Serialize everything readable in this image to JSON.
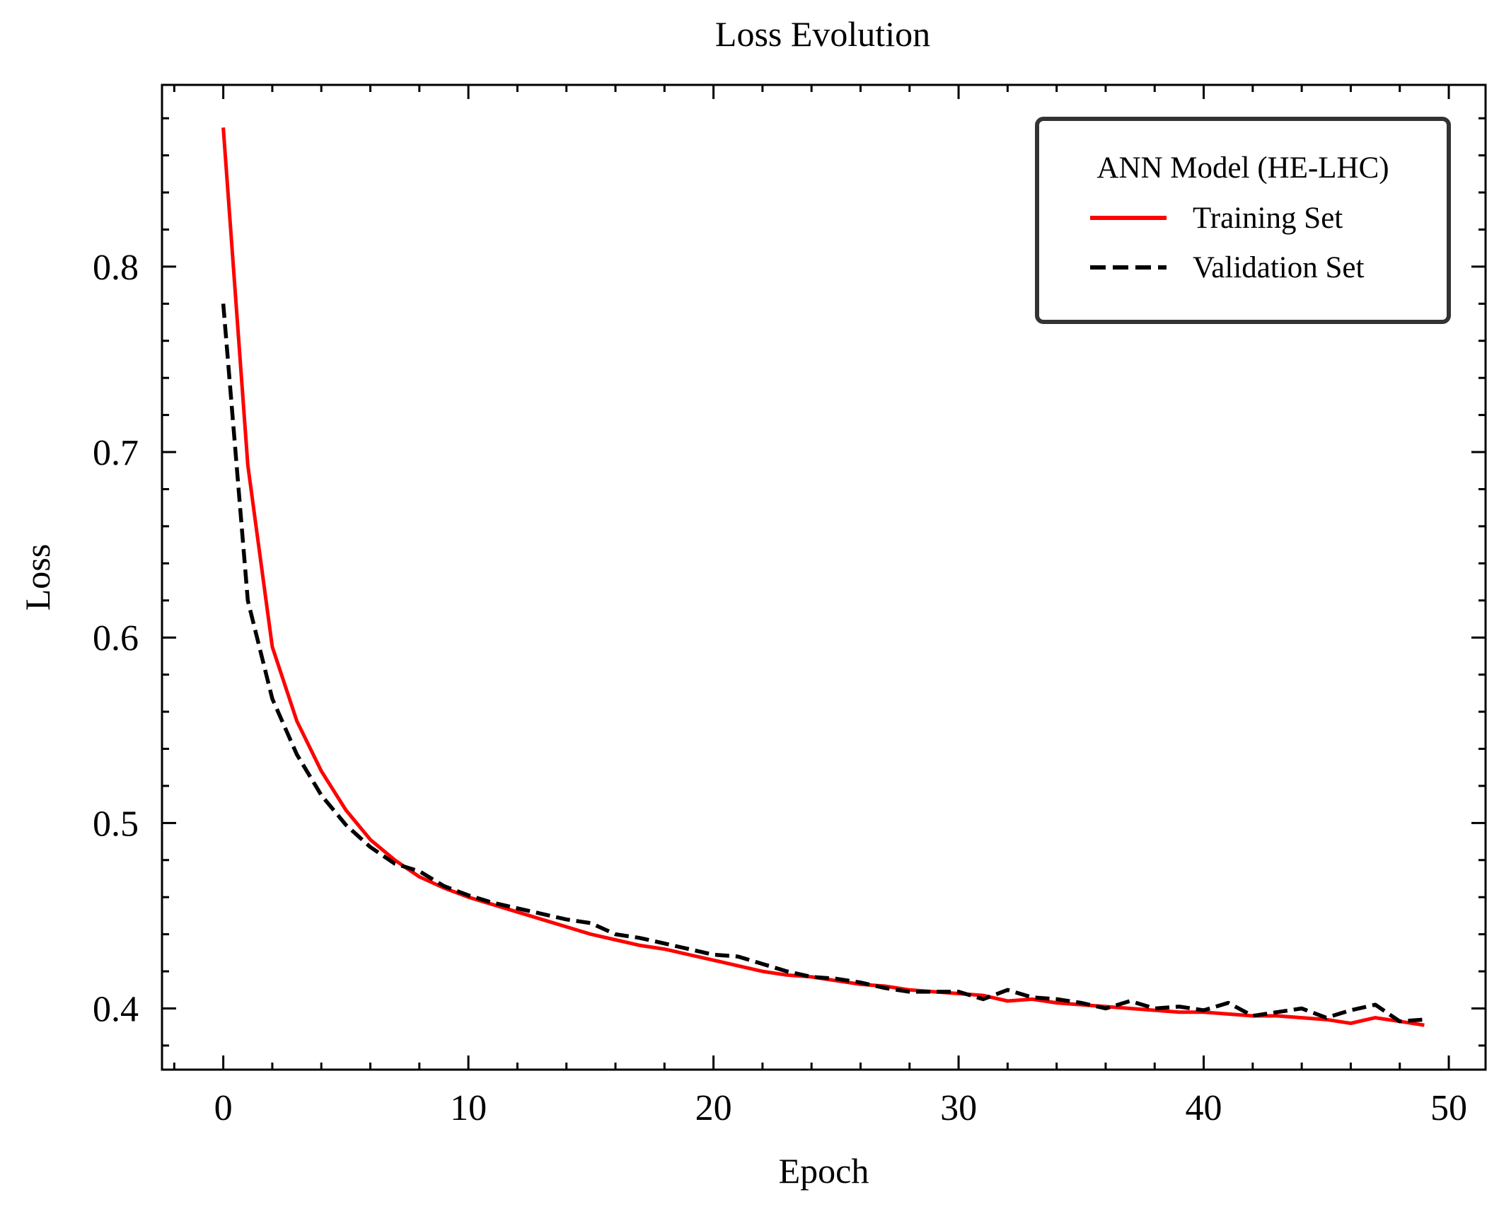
{
  "chart_data": {
    "type": "line",
    "title": "Loss Evolution",
    "xlabel": "Epoch",
    "ylabel": "Loss",
    "xlim": [
      -2.5,
      51.5
    ],
    "ylim": [
      0.367,
      0.898
    ],
    "xticks": [
      0,
      10,
      20,
      30,
      40,
      50
    ],
    "xtick_labels": [
      "0",
      "10",
      "20",
      "30",
      "40",
      "50"
    ],
    "yticks": [
      0.4,
      0.5,
      0.6,
      0.7,
      0.8
    ],
    "ytick_labels": [
      "0.4",
      "0.5",
      "0.6",
      "0.7",
      "0.8"
    ],
    "grid": false,
    "legend": {
      "title": "ANN Model (HE-LHC)",
      "placement": "upper right"
    },
    "series": [
      {
        "name": "Training Set",
        "color": "#ff0000",
        "style": "solid",
        "x": [
          0,
          1,
          2,
          3,
          4,
          5,
          6,
          7,
          8,
          9,
          10,
          11,
          12,
          13,
          14,
          15,
          16,
          17,
          18,
          19,
          20,
          21,
          22,
          23,
          24,
          25,
          26,
          27,
          28,
          29,
          30,
          31,
          32,
          33,
          34,
          35,
          36,
          37,
          38,
          39,
          40,
          41,
          42,
          43,
          44,
          45,
          46,
          47,
          48,
          49
        ],
        "y": [
          0.875,
          0.693,
          0.595,
          0.555,
          0.528,
          0.507,
          0.491,
          0.48,
          0.471,
          0.465,
          0.46,
          0.456,
          0.452,
          0.448,
          0.444,
          0.44,
          0.437,
          0.434,
          0.432,
          0.429,
          0.426,
          0.423,
          0.42,
          0.418,
          0.417,
          0.415,
          0.413,
          0.412,
          0.41,
          0.409,
          0.408,
          0.407,
          0.404,
          0.405,
          0.403,
          0.402,
          0.401,
          0.4,
          0.399,
          0.398,
          0.398,
          0.397,
          0.396,
          0.396,
          0.395,
          0.394,
          0.392,
          0.395,
          0.393,
          0.391
        ]
      },
      {
        "name": "Validation Set",
        "color": "#000000",
        "style": "dashed",
        "x": [
          0,
          1,
          2,
          3,
          4,
          5,
          6,
          7,
          8,
          9,
          10,
          11,
          12,
          13,
          14,
          15,
          16,
          17,
          18,
          19,
          20,
          21,
          22,
          23,
          24,
          25,
          26,
          27,
          28,
          29,
          30,
          31,
          32,
          33,
          34,
          35,
          36,
          37,
          38,
          39,
          40,
          41,
          42,
          43,
          44,
          45,
          46,
          47,
          48,
          49
        ],
        "y": [
          0.78,
          0.62,
          0.567,
          0.537,
          0.515,
          0.499,
          0.487,
          0.478,
          0.474,
          0.466,
          0.461,
          0.457,
          0.454,
          0.451,
          0.448,
          0.446,
          0.44,
          0.438,
          0.435,
          0.432,
          0.429,
          0.428,
          0.424,
          0.42,
          0.417,
          0.416,
          0.414,
          0.411,
          0.409,
          0.409,
          0.409,
          0.405,
          0.41,
          0.406,
          0.405,
          0.403,
          0.4,
          0.404,
          0.4,
          0.401,
          0.399,
          0.403,
          0.396,
          0.398,
          0.4,
          0.395,
          0.399,
          0.402,
          0.393,
          0.394
        ]
      }
    ]
  }
}
